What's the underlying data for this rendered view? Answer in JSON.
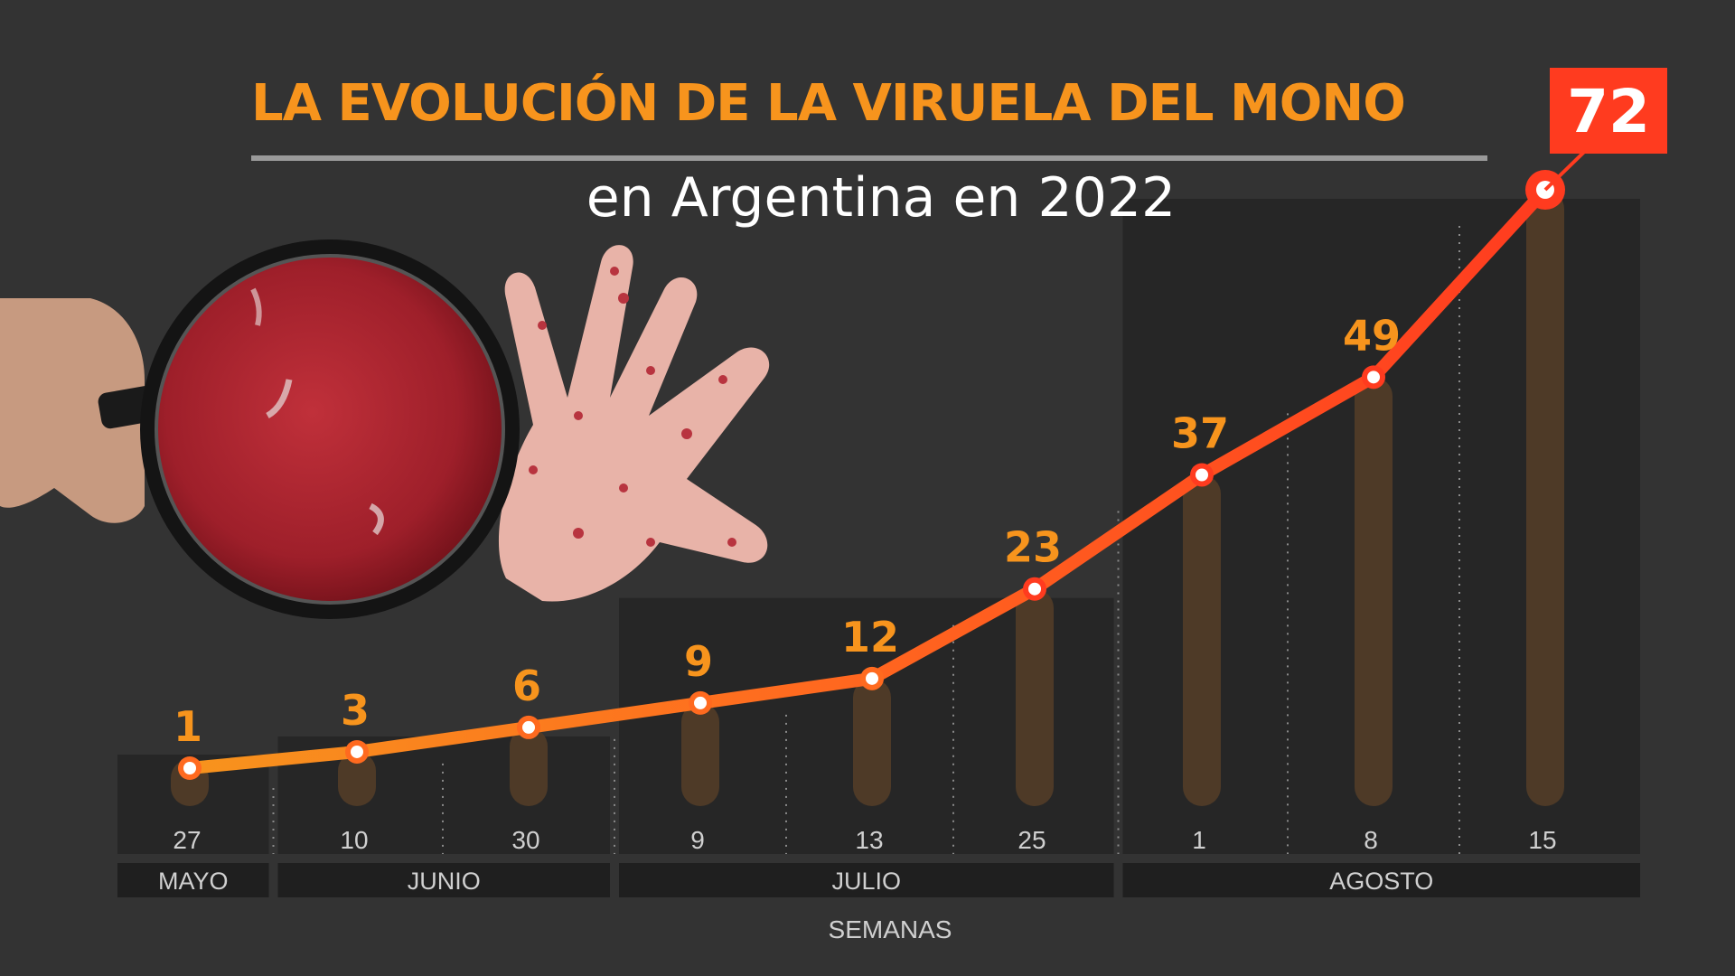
{
  "title": "LA EVOLUCIÓN DE LA VIRUELA DEL MONO",
  "subtitle": "en Argentina en 2022",
  "colors": {
    "background": "#333333",
    "accent_orange": "#f7941d",
    "line_start": "#f7941d",
    "line_end": "#ff3b1f",
    "bar": "#4e3a27",
    "panel": "#262626",
    "callout": "#ff3b1f"
  },
  "illustration": {
    "magnifier": "magnifying-glass-icon",
    "hand": "rash-hand-icon"
  },
  "chart_data": {
    "type": "line",
    "title": "LA EVOLUCIÓN DE LA VIRUELA DEL MONO",
    "subtitle": "en Argentina en 2022",
    "xlabel": "SEMANAS",
    "ylabel": "",
    "categories": [
      "27",
      "10",
      "30",
      "9",
      "13",
      "25",
      "1",
      "8",
      "15"
    ],
    "months": [
      {
        "label": "MAYO",
        "span": [
          0,
          0
        ]
      },
      {
        "label": "JUNIO",
        "span": [
          1,
          2
        ]
      },
      {
        "label": "JULIO",
        "span": [
          3,
          5
        ]
      },
      {
        "label": "AGOSTO",
        "span": [
          6,
          8
        ]
      }
    ],
    "series": [
      {
        "values": [
          1,
          3,
          6,
          9,
          12,
          23,
          37,
          49,
          72
        ]
      }
    ],
    "value_labels": [
      "1",
      "3",
      "6",
      "9",
      "12",
      "23",
      "37",
      "49",
      "72"
    ],
    "highlight_label": "72",
    "ylim": [
      0,
      72
    ],
    "grid": false,
    "legend": "none"
  }
}
